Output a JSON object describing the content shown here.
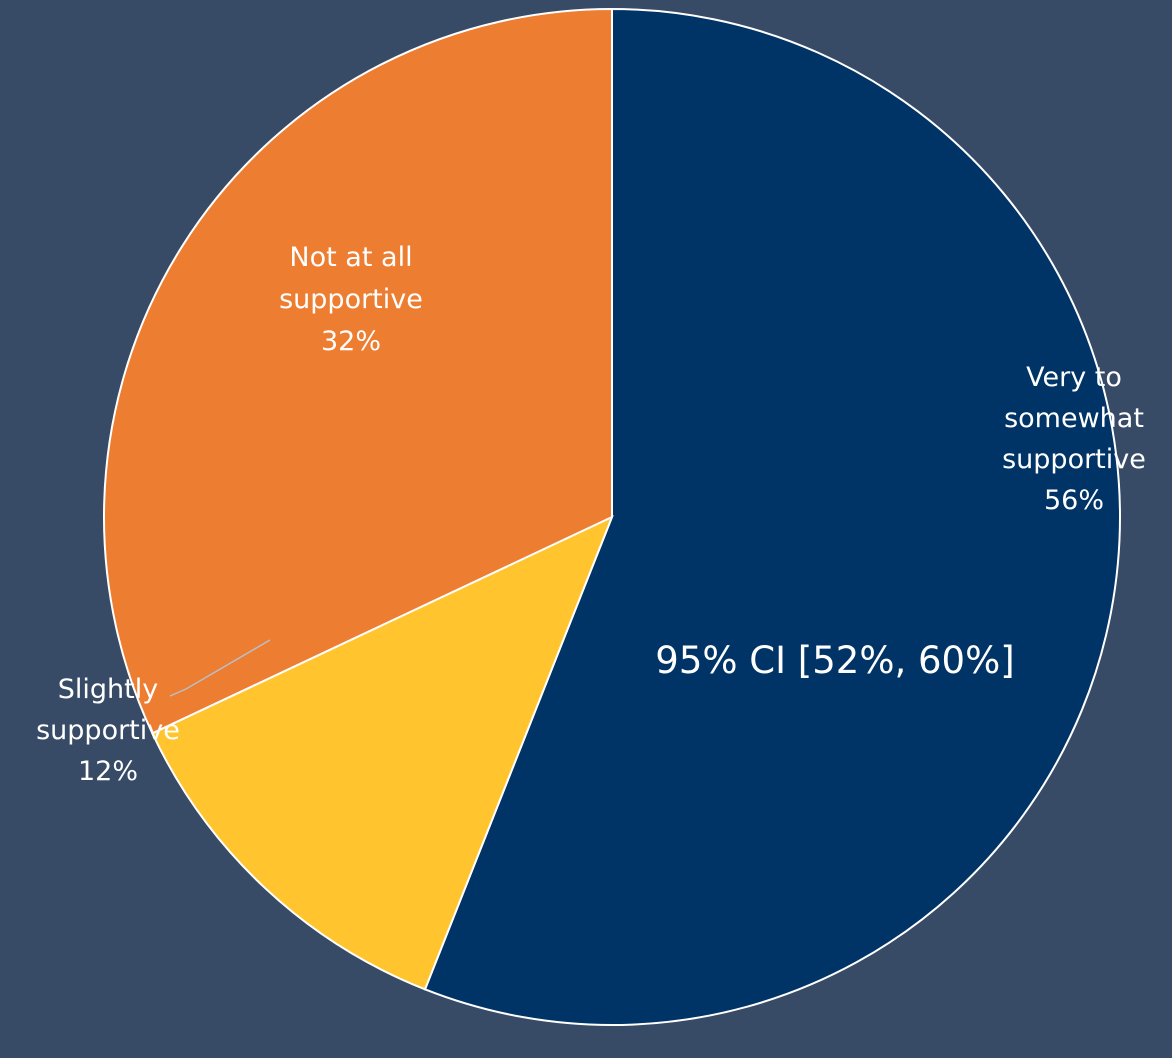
{
  "background": "#384B66",
  "chart_data": {
    "type": "pie",
    "title": "",
    "start_angle_deg": 0,
    "direction": "clockwise",
    "slice_border_color": "#FFFFFF",
    "slices": [
      {
        "lines": [
          "Very to",
          "somewhat",
          "supportive",
          "56%"
        ],
        "label": "Very to somewhat supportive",
        "value": 56,
        "value_label": "56%",
        "color": "#003366"
      },
      {
        "lines": [
          "Slightly",
          "supportive",
          "12%"
        ],
        "label": "Slightly supportive",
        "value": 12,
        "value_label": "12%",
        "color": "#FFC42E",
        "leader_line": true
      },
      {
        "lines": [
          "Not at all",
          "supportive",
          "32%"
        ],
        "label": "Not at all supportive",
        "value": 32,
        "value_label": "32%",
        "color": "#ED7D31"
      }
    ],
    "annotation": "95% CI [52%, 60%]"
  }
}
